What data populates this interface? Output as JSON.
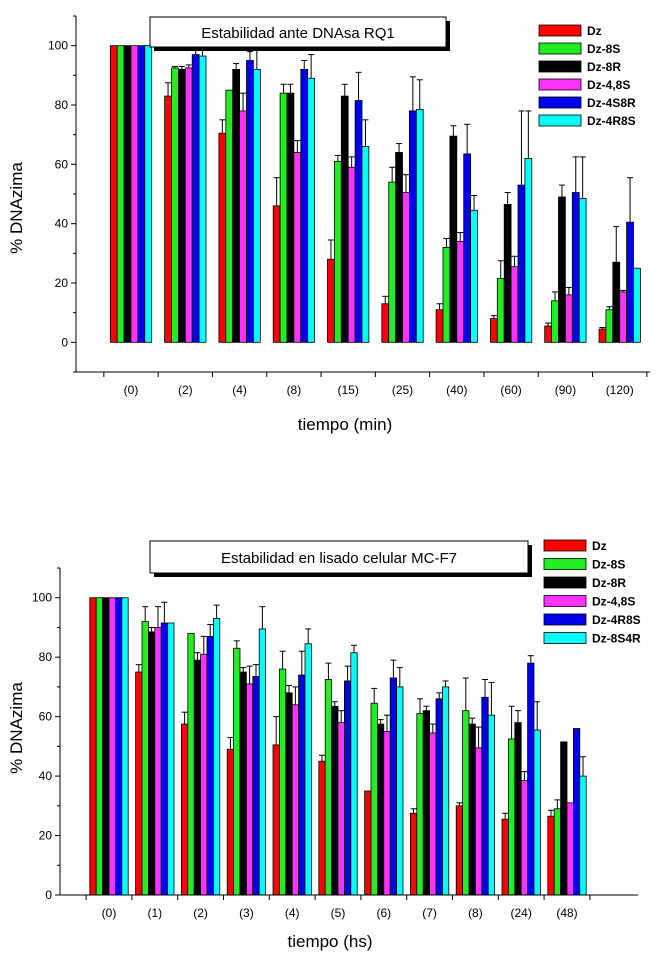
{
  "colors": {
    "red": "#ff0000",
    "green": "#22ee22",
    "black": "#000000",
    "magenta": "#ff33ff",
    "blue": "#0000ee",
    "cyan": "#00ffff"
  },
  "chart_data": [
    {
      "type": "bar",
      "title": "Estabilidad ante DNAsa RQ1",
      "xlabel": "tiempo (min)",
      "ylabel": "% DNAzima",
      "ylim": [
        -10,
        110
      ],
      "yticks": [
        "0",
        "20",
        "40",
        "60",
        "80",
        "100"
      ],
      "categories": [
        "(0)",
        "(2)",
        "(4)",
        "(8)",
        "(15)",
        "(25)",
        "(40)",
        "(60)",
        "(90)",
        "(120)"
      ],
      "extra_tick": "--",
      "legend_position": "top-right",
      "grid": false,
      "series": [
        {
          "name": "Dz",
          "color": "red",
          "values": [
            100,
            83,
            70.5,
            46,
            28,
            13,
            11,
            8,
            5.5,
            4.5
          ],
          "errors": [
            0,
            4.5,
            4.5,
            9.5,
            6.5,
            2.5,
            2,
            1,
            1,
            0.5
          ]
        },
        {
          "name": "Dz-8S",
          "color": "green",
          "values": [
            100,
            92.5,
            85,
            84,
            61,
            54,
            32,
            21.5,
            14,
            11
          ],
          "errors": [
            0,
            0.5,
            0,
            3,
            2,
            5,
            3,
            6,
            3,
            1
          ]
        },
        {
          "name": "Dz-8R",
          "color": "black",
          "values": [
            100,
            92,
            92,
            84,
            83,
            64,
            69.5,
            46.5,
            49,
            27
          ],
          "errors": [
            0,
            1,
            2,
            3,
            4,
            3,
            3.5,
            4,
            4,
            12
          ]
        },
        {
          "name": "Dz-4,8S",
          "color": "magenta",
          "values": [
            100,
            92.5,
            78,
            64,
            59,
            50.5,
            34,
            25.5,
            16,
            17
          ],
          "errors": [
            0,
            1,
            6,
            4,
            3.5,
            6,
            3,
            3.5,
            2.5,
            0.5
          ]
        },
        {
          "name": "Dz-4S8R",
          "color": "blue",
          "values": [
            100,
            97,
            95,
            92,
            81.5,
            78,
            63.5,
            53,
            50.5,
            40.5
          ],
          "errors": [
            0,
            2.5,
            3,
            3,
            9.5,
            11.5,
            10,
            25,
            12,
            15
          ]
        },
        {
          "name": "Dz-4R8S",
          "color": "cyan",
          "values": [
            100,
            96.5,
            92,
            89,
            66,
            78.5,
            44.5,
            62,
            48.5,
            25
          ],
          "errors": [
            0,
            3,
            7,
            8,
            9,
            10,
            5,
            16,
            14,
            0
          ]
        }
      ]
    },
    {
      "type": "bar",
      "title": "Estabilidad en lisado celular MC-F7",
      "xlabel": "tiempo (hs)",
      "ylabel": "% DNAzima",
      "ylim": [
        0,
        110
      ],
      "yticks": [
        "0",
        "20",
        "40",
        "60",
        "80",
        "100"
      ],
      "categories": [
        "(0)",
        "(1)",
        "(2)",
        "(3)",
        "(4)",
        "(5)",
        "(6)",
        "(7)",
        "(8)",
        "(24)",
        "(48)"
      ],
      "legend_position": "top-right",
      "grid": false,
      "series": [
        {
          "name": "Dz",
          "color": "red",
          "values": [
            100,
            75,
            57.5,
            49,
            50.5,
            45,
            35,
            27.5,
            30,
            25.5,
            26.5
          ],
          "errors": [
            0,
            2.5,
            4,
            4,
            9.5,
            2,
            0,
            1.5,
            1,
            2,
            2
          ]
        },
        {
          "name": "Dz-8S",
          "color": "green",
          "values": [
            100,
            92,
            88,
            83,
            76,
            72.5,
            64.5,
            61,
            62,
            52.5,
            29
          ],
          "errors": [
            0,
            5,
            0,
            2.5,
            6,
            5.5,
            5,
            5,
            11,
            11,
            3
          ]
        },
        {
          "name": "Dz-8R",
          "color": "black",
          "values": [
            100,
            88.5,
            79,
            75,
            68,
            63.5,
            57.5,
            62,
            57.5,
            58,
            51.5
          ],
          "errors": [
            0,
            1.5,
            2.5,
            1.5,
            2.5,
            1.5,
            1.5,
            1.5,
            2,
            4,
            0
          ]
        },
        {
          "name": "Dz-4,8S",
          "color": "magenta",
          "values": [
            100,
            90,
            81,
            71,
            64,
            58,
            55,
            54.5,
            49.5,
            38.5,
            31
          ],
          "errors": [
            0,
            7,
            6,
            6,
            6,
            4,
            5.5,
            3,
            7,
            3,
            0
          ]
        },
        {
          "name": "Dz-4R8S",
          "color": "blue",
          "values": [
            100,
            91.5,
            87,
            73.5,
            74,
            72,
            73,
            66,
            66.5,
            78,
            56
          ],
          "errors": [
            0,
            7,
            4,
            4,
            8,
            5,
            6,
            2,
            6,
            2.5,
            0
          ]
        },
        {
          "name": "Dz-8S4R",
          "color": "cyan",
          "values": [
            100,
            91.5,
            93,
            89.5,
            84.5,
            81.5,
            70,
            70,
            60.5,
            55.5,
            40
          ],
          "errors": [
            0,
            0,
            4.5,
            7.5,
            5,
            2.5,
            6.5,
            2,
            11,
            9.5,
            6.5
          ]
        }
      ]
    }
  ]
}
